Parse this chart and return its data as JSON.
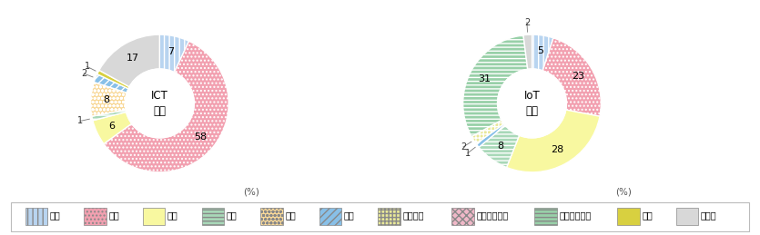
{
  "ict": {
    "values": [
      7,
      58,
      6,
      1,
      8,
      2,
      0,
      0,
      0,
      1,
      17
    ],
    "center_text": "ICT\n分野"
  },
  "iot": {
    "values": [
      5,
      23,
      28,
      8,
      0,
      1,
      2,
      0,
      31,
      0,
      2
    ],
    "center_text": "IoT\n分野"
  },
  "legend_labels": [
    "日本",
    "米国",
    "独国",
    "韓国",
    "中国",
    "仏国",
    "オランダ",
    "スウェーデン",
    "フィンランド",
    "台湾",
    "その他"
  ],
  "face_colors": [
    "#b8d4f0",
    "#f2a0b0",
    "#f8f8a0",
    "#a8d8b8",
    "#f8d898",
    "#88c0e8",
    "#e8e898",
    "#f0b8c8",
    "#98d0a8",
    "#d8d040",
    "#d8d8d8"
  ],
  "hatch_patterns": [
    "|||",
    "....",
    "",
    "----",
    "oooo",
    "////",
    "++++",
    "xxxx",
    "----",
    "####",
    ""
  ],
  "outer_r": 1.0,
  "inner_r": 0.5,
  "label_threshold_inside": 5,
  "percent_label": "(%)"
}
